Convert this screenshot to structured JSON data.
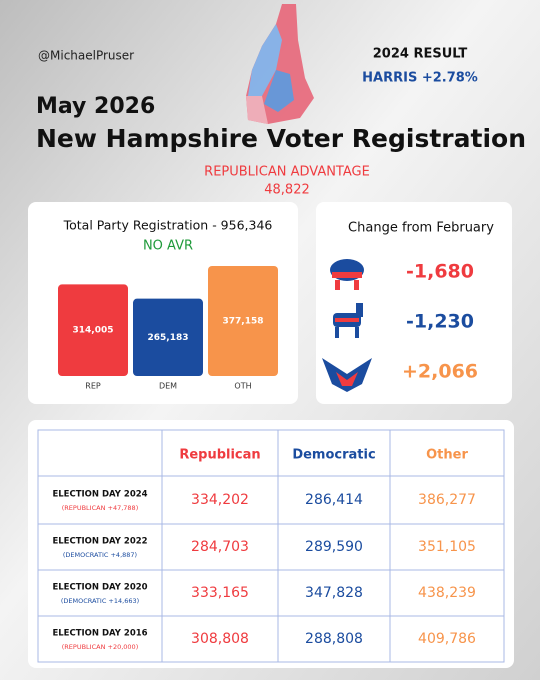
{
  "header": {
    "handle": "@MichaelPruser",
    "result_title": "2024 RESULT",
    "result": "HARRIS +2.78%",
    "date": "May 2026",
    "title": "New Hampshire Voter Registration",
    "advantage_label": "REPUBLICAN ADVANTAGE",
    "advantage": "48,822"
  },
  "chart_data": {
    "type": "bar",
    "title": "Total Party Registration - 956,346",
    "subtitle": "NO AVR",
    "categories": [
      "REP",
      "DEM",
      "OTH"
    ],
    "values": [
      314005,
      265183,
      377158
    ],
    "value_labels": [
      "314,005",
      "265,183",
      "377,158"
    ],
    "colors": [
      "#ef3b3f",
      "#1b4c9f",
      "#f7944b"
    ]
  },
  "change": {
    "title": "Change from February",
    "items": [
      "-1,680",
      "-1,230",
      "+2,066"
    ]
  },
  "table": {
    "columns": [
      "Republican",
      "Democratic",
      "Other"
    ],
    "rows": [
      {
        "label": "ELECTION DAY 2024",
        "note": "(REPUBLICAN +47,788)",
        "values": [
          "334,202",
          "286,414",
          "386,277"
        ]
      },
      {
        "label": "ELECTION DAY 2022",
        "note": "(DEMOCRATIC +4,887)",
        "values": [
          "284,703",
          "289,590",
          "351,105"
        ]
      },
      {
        "label": "ELECTION DAY 2020",
        "note": "(DEMOCRATIC +14,663)",
        "values": [
          "333,165",
          "347,828",
          "438,239"
        ]
      },
      {
        "label": "ELECTION DAY 2016",
        "note": "(REPUBLICAN +20,000)",
        "values": [
          "308,808",
          "288,808",
          "409,786"
        ]
      }
    ]
  }
}
